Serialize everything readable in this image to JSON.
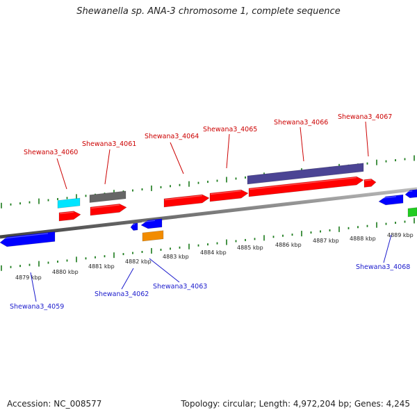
{
  "title": "Shewanella sp. ANA-3 chromosome 1, complete sequence",
  "footer": {
    "accession": "Accession: NC_008577",
    "summary": "Topology: circular; Length: 4,972,204 bp; Genes: 4,245"
  },
  "colors": {
    "forward": "#ff0000",
    "reverse": "#0000ff",
    "forward_label": "#cc0000",
    "reverse_label": "#1a1acc",
    "tick": "#1a7a1a",
    "backbone": "#808080",
    "cyan": "#00e5ff",
    "gray": "#666666",
    "purple": "#4b4494",
    "orange": "#f28c00",
    "green": "#22cc22"
  },
  "kbp_labels": [
    "4879 kbp",
    "4880 kbp",
    "4881 kbp",
    "4882 kbp",
    "4883 kbp",
    "4884 kbp",
    "4885 kbp",
    "4886 kbp",
    "4887 kbp",
    "4888 kbp",
    "4889 kbp"
  ],
  "forward_gene_labels": [
    "Shewana3_4060",
    "Shewana3_4061",
    "Shewana3_4064",
    "Shewana3_4065",
    "Shewana3_4066",
    "Shewana3_4067"
  ],
  "reverse_gene_labels": [
    "Shewana3_4059",
    "Shewana3_4062",
    "Shewana3_4063",
    "Shewana3_4068"
  ]
}
